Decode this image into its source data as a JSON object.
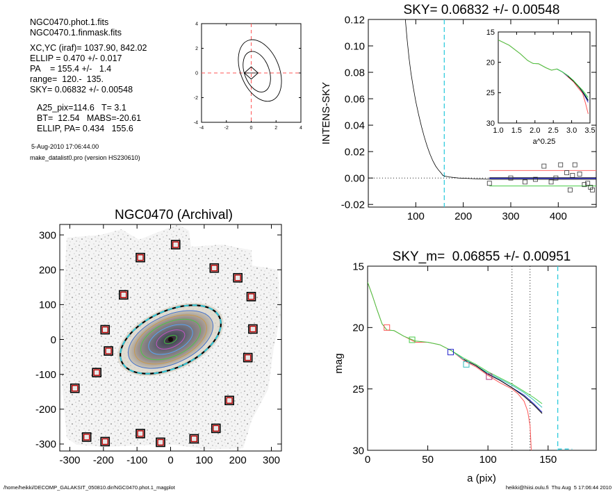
{
  "info": {
    "lines": [
      "NGC0470.phot.1.fits",
      "NGC0470.1.finmask.fits",
      "XC,YC (iraf)=  1037.90, 842.02",
      "ELLIP = 0.470 +/- 0.017",
      "PA    = 155.4 +/-   1.4",
      "range=  120.-  135.",
      "SKY= 0.06832 +/- 0.00548"
    ],
    "stats": [
      "A25_pix=114.6   T= 3.1",
      "BT=  12.54   MABS=-20.61",
      "ELLIP, PA= 0.434   155.6"
    ],
    "timestamp": "5-Aug-2010 17:06:44.00",
    "program": "make_datalist0.pro (version HS230610)"
  },
  "footer": {
    "left": "/home/heikki/DECOMP_GALAKSIT_050810.dir/NGC0470.phot.1_magplot",
    "right": "heikki@hiisi.oulu.fi  Thu Aug  5 17:06:44 2010"
  },
  "chart_data": [
    {
      "id": "centroid",
      "type": "contour",
      "title": "",
      "xlim": [
        -4,
        4
      ],
      "ylim": [
        -4,
        4
      ],
      "xticks": [
        -4,
        -2,
        0,
        2,
        4
      ],
      "yticks": [
        -4,
        -2,
        0,
        2,
        4
      ],
      "contours": [
        {
          "center": [
            0.7,
            0.2
          ],
          "a": 2.6,
          "b": 1.55,
          "angle_deg": 112
        },
        {
          "center": [
            0.45,
            0.1
          ],
          "a": 1.7,
          "b": 1.0,
          "angle_deg": 110
        }
      ],
      "diamond": {
        "center": [
          0,
          0
        ],
        "dx": 0.55,
        "dy": 0.5
      },
      "crosshair": [
        0,
        0
      ],
      "colors": {
        "contour": "#000000",
        "crosshair": "#ff5555"
      }
    },
    {
      "id": "sky",
      "type": "line",
      "title": "SKY= 0.06832 +/- 0.00548",
      "xlabel": "",
      "ylabel": "INTENS-SKY",
      "xlim": [
        0,
        480
      ],
      "ylim": [
        -0.022,
        0.12
      ],
      "xticks": [
        100,
        200,
        300,
        400
      ],
      "yticks": [
        -0.02,
        0.0,
        0.02,
        0.04,
        0.06,
        0.08,
        0.1,
        0.12
      ],
      "ytick_labels": [
        "-0.02",
        "0.00",
        "0.02",
        "0.04",
        "0.06",
        "0.08",
        "0.10",
        "0.12"
      ],
      "profile": [
        [
          78,
          0.12
        ],
        [
          82,
          0.104
        ],
        [
          86,
          0.09
        ],
        [
          90,
          0.079
        ],
        [
          95,
          0.068
        ],
        [
          100,
          0.058
        ],
        [
          106,
          0.048
        ],
        [
          112,
          0.039
        ],
        [
          118,
          0.031
        ],
        [
          124,
          0.024
        ],
        [
          130,
          0.018
        ],
        [
          136,
          0.013
        ],
        [
          142,
          0.009
        ],
        [
          148,
          0.006
        ],
        [
          153,
          0.004
        ],
        [
          157,
          0.002
        ],
        [
          160,
          0.0015
        ],
        [
          170,
          0.0008
        ],
        [
          190,
          0.0
        ],
        [
          220,
          -0.0005
        ],
        [
          260,
          -0.001
        ],
        [
          480,
          -0.001
        ]
      ],
      "sky_marker_x": 160,
      "hlines": [
        {
          "y": 0.0057,
          "x0": 255,
          "x1": 480,
          "color": "#ff6666"
        },
        {
          "y": 0.0,
          "x0": 255,
          "x1": 480,
          "color": "#000000"
        },
        {
          "y": -0.0003,
          "x0": 255,
          "x1": 480,
          "color": "#0000cc"
        },
        {
          "y": -0.006,
          "x0": 255,
          "x1": 480,
          "color": "#44cc44"
        }
      ],
      "squares": [
        [
          255,
          -0.004
        ],
        [
          300,
          0.0
        ],
        [
          330,
          -0.003
        ],
        [
          352,
          -0.001
        ],
        [
          370,
          0.009
        ],
        [
          385,
          -0.003
        ],
        [
          395,
          0.0
        ],
        [
          405,
          0.01
        ],
        [
          418,
          0.004
        ],
        [
          425,
          -0.009
        ],
        [
          430,
          0.002
        ],
        [
          435,
          0.01
        ],
        [
          445,
          0.003
        ],
        [
          455,
          -0.005
        ],
        [
          462,
          -0.004
        ],
        [
          468,
          -0.007
        ],
        [
          472,
          -0.009
        ]
      ],
      "zero_line": 0.0,
      "colors": {
        "profile": "#000000",
        "sky_marker": "#33ccdd",
        "squares": "#333333"
      }
    },
    {
      "id": "inset",
      "type": "line",
      "title": "",
      "xlabel": "a^0.25",
      "ylabel": "",
      "xlim": [
        1.0,
        3.5
      ],
      "ylim": [
        30,
        15
      ],
      "xticks": [
        1.0,
        1.5,
        2.0,
        2.5,
        3.0,
        3.5
      ],
      "xtick_labels": [
        "1.0",
        "1.5",
        "2.0",
        "2.5",
        "3.0",
        "3.5"
      ],
      "yticks": [
        15,
        20,
        25,
        30
      ],
      "series": [
        {
          "color": "#ff5555",
          "points": [
            [
              1.0,
              16.3
            ],
            [
              1.3,
              17.2
            ],
            [
              1.6,
              18.6
            ],
            [
              1.8,
              19.7
            ],
            [
              1.95,
              20.2
            ],
            [
              2.1,
              20.25
            ],
            [
              2.3,
              20.9
            ],
            [
              2.45,
              21.3
            ],
            [
              2.6,
              21.1
            ],
            [
              2.75,
              21.6
            ],
            [
              2.9,
              22.4
            ],
            [
              3.05,
              23.2
            ],
            [
              3.2,
              24.4
            ],
            [
              3.3,
              25.1
            ],
            [
              3.38,
              26.8
            ],
            [
              3.45,
              28.5
            ]
          ]
        },
        {
          "color": "#2222cc",
          "points": [
            [
              2.6,
              21.1
            ],
            [
              2.75,
              21.6
            ],
            [
              2.9,
              22.3
            ],
            [
              3.05,
              23.1
            ],
            [
              3.2,
              24.0
            ],
            [
              3.3,
              24.9
            ],
            [
              3.4,
              26.0
            ],
            [
              3.45,
              26.6
            ]
          ]
        },
        {
          "color": "#33bbbb",
          "points": [
            [
              2.6,
              21.1
            ],
            [
              2.75,
              21.6
            ],
            [
              2.9,
              22.2
            ],
            [
              3.05,
              23.0
            ],
            [
              3.2,
              24.1
            ],
            [
              3.3,
              24.8
            ],
            [
              3.4,
              25.7
            ],
            [
              3.45,
              26.2
            ]
          ]
        },
        {
          "color": "#000000",
          "points": [
            [
              2.9,
              22.3
            ],
            [
              3.05,
              23.1
            ],
            [
              3.2,
              24.1
            ],
            [
              3.3,
              24.9
            ],
            [
              3.4,
              25.8
            ],
            [
              3.45,
              26.3
            ]
          ]
        },
        {
          "color": "#44cc44",
          "points": [
            [
              1.0,
              16.3
            ],
            [
              1.3,
              17.2
            ],
            [
              1.6,
              18.6
            ],
            [
              1.8,
              19.7
            ],
            [
              1.95,
              20.2
            ],
            [
              2.1,
              20.25
            ],
            [
              2.3,
              20.9
            ],
            [
              2.45,
              21.3
            ],
            [
              2.6,
              21.1
            ],
            [
              2.75,
              21.6
            ],
            [
              2.9,
              22.2
            ],
            [
              3.05,
              23.0
            ],
            [
              3.2,
              24.0
            ],
            [
              3.3,
              24.6
            ],
            [
              3.4,
              25.4
            ],
            [
              3.45,
              25.8
            ]
          ]
        }
      ]
    },
    {
      "id": "galaxy",
      "type": "scatter",
      "title": "NGC0470 (Archival)",
      "xlabel": "",
      "ylabel": "",
      "xlim": [
        -330,
        330
      ],
      "ylim": [
        -320,
        330
      ],
      "xticks": [
        -300,
        -200,
        -100,
        0,
        100,
        200,
        300
      ],
      "yticks": [
        -300,
        -200,
        -100,
        0,
        100,
        200,
        300
      ],
      "center": [
        0,
        0
      ],
      "ellipse_pa_deg": 155.4,
      "ellipse_ellip": 0.47,
      "isophote_a": [
        20,
        45,
        70,
        95,
        115,
        135
      ],
      "dashed_ellipse_a": 160,
      "squares": [
        [
          15,
          272
        ],
        [
          -90,
          235
        ],
        [
          130,
          205
        ],
        [
          200,
          177
        ],
        [
          -140,
          128
        ],
        [
          240,
          123
        ],
        [
          -195,
          28
        ],
        [
          245,
          30
        ],
        [
          -185,
          -33
        ],
        [
          230,
          -52
        ],
        [
          -220,
          -95
        ],
        [
          -285,
          -140
        ],
        [
          175,
          -175
        ],
        [
          -250,
          -280
        ],
        [
          -195,
          -293
        ],
        [
          -90,
          -270
        ],
        [
          -30,
          -295
        ],
        [
          70,
          -285
        ],
        [
          135,
          -255
        ]
      ],
      "colors": {
        "squares": "#bb0000",
        "dashed": "#33ccdd"
      }
    },
    {
      "id": "mag",
      "type": "line",
      "title": "SKY_m=  0.06855 +/- 0.00951",
      "xlabel": "a (pix)",
      "ylabel": "mag",
      "xlim": [
        0,
        190
      ],
      "ylim": [
        30,
        15
      ],
      "xticks": [
        0,
        50,
        100,
        150
      ],
      "yticks": [
        15,
        20,
        25,
        30
      ],
      "series": [
        {
          "color": "#ff5555",
          "points": [
            [
              0,
              16.3
            ],
            [
              4,
              17.4
            ],
            [
              8,
              18.6
            ],
            [
              12,
              19.7
            ],
            [
              16,
              20.2
            ],
            [
              22,
              20.25
            ],
            [
              30,
              20.7
            ],
            [
              40,
              21.2
            ],
            [
              50,
              21.2
            ],
            [
              60,
              21.4
            ],
            [
              70,
              21.9
            ],
            [
              80,
              22.7
            ],
            [
              90,
              23.2
            ],
            [
              100,
              23.9
            ],
            [
              110,
              24.5
            ],
            [
              120,
              25.0
            ],
            [
              125,
              25.4
            ],
            [
              130,
              26.0
            ],
            [
              133,
              26.8
            ],
            [
              135,
              28.0
            ],
            [
              136,
              30.0
            ]
          ]
        },
        {
          "color": "#2222cc",
          "points": [
            [
              70,
              21.9
            ],
            [
              80,
              22.6
            ],
            [
              90,
              23.1
            ],
            [
              100,
              23.8
            ],
            [
              110,
              24.3
            ],
            [
              120,
              24.9
            ],
            [
              130,
              25.5
            ],
            [
              138,
              26.2
            ],
            [
              145,
              26.9
            ]
          ]
        },
        {
          "color": "#33bbbb",
          "points": [
            [
              70,
              21.9
            ],
            [
              80,
              22.6
            ],
            [
              90,
              23.1
            ],
            [
              100,
              23.7
            ],
            [
              110,
              24.2
            ],
            [
              120,
              24.7
            ],
            [
              130,
              25.3
            ],
            [
              138,
              25.9
            ],
            [
              145,
              26.5
            ]
          ]
        },
        {
          "color": "#000000",
          "points": [
            [
              80,
              22.6
            ],
            [
              90,
              23.1
            ],
            [
              100,
              23.8
            ],
            [
              110,
              24.3
            ],
            [
              120,
              24.9
            ],
            [
              130,
              25.6
            ],
            [
              138,
              26.3
            ],
            [
              145,
              27.0
            ]
          ]
        },
        {
          "color": "#44cc44",
          "points": [
            [
              0,
              16.3
            ],
            [
              4,
              17.4
            ],
            [
              8,
              18.6
            ],
            [
              12,
              19.7
            ],
            [
              16,
              20.2
            ],
            [
              22,
              20.25
            ],
            [
              30,
              20.7
            ],
            [
              40,
              21.1
            ],
            [
              50,
              21.2
            ],
            [
              60,
              21.4
            ],
            [
              70,
              21.9
            ],
            [
              80,
              22.5
            ],
            [
              90,
              23.0
            ],
            [
              100,
              23.6
            ],
            [
              110,
              24.1
            ],
            [
              120,
              24.6
            ],
            [
              130,
              25.2
            ],
            [
              138,
              25.7
            ],
            [
              145,
              26.2
            ]
          ]
        }
      ],
      "squares": [
        {
          "x": 16,
          "y": 20.0,
          "color": "#ff5555"
        },
        {
          "x": 37,
          "y": 21.0,
          "color": "#44cc44"
        },
        {
          "x": 69,
          "y": 22.0,
          "color": "#2222cc"
        },
        {
          "x": 82,
          "y": 23.0,
          "color": "#33bbbb"
        },
        {
          "x": 101,
          "y": 24.0,
          "color": "#aa3377"
        }
      ],
      "vlines": [
        {
          "x": 120,
          "color": "#000000",
          "style": "dotted"
        },
        {
          "x": 135,
          "color": "#000000",
          "style": "dotted"
        },
        {
          "x": 158,
          "color": "#33ccdd",
          "style": "dashed"
        }
      ],
      "sky_dash": {
        "y": 29.9,
        "x0": 158,
        "x1": 170,
        "color": "#33ccdd"
      }
    }
  ]
}
